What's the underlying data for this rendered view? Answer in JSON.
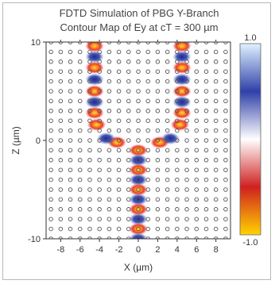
{
  "chart_data": {
    "type": "heatmap",
    "title": "FDTD Simulation of PBG Y-Branch",
    "subtitle": "Contour Map of Ey at cT = 300 µm",
    "xlabel": "X (µm)",
    "ylabel": "Z (µm)",
    "xlim": [
      -9.5,
      9.5
    ],
    "ylim": [
      -10,
      10
    ],
    "xticks": [
      -8,
      -6,
      -4,
      -2,
      0,
      2,
      4,
      6,
      8
    ],
    "yticks": [
      10,
      0,
      -10
    ],
    "colorbar": {
      "range": [
        -1.0,
        1.0
      ],
      "tick_labels": [
        "1.0",
        "-1.0"
      ],
      "colors_high_to_low": [
        "#dff2ff",
        "#3040a8",
        "#ffffff",
        "#d02020",
        "#ffd400"
      ]
    },
    "rod_lattice": {
      "pitch_um": 1.0,
      "x_range": [
        -9,
        9
      ],
      "z_range": [
        -10,
        10
      ],
      "marker": "open-circle"
    },
    "field_lobes": [
      {
        "x": 0,
        "z": -1,
        "sign": 1
      },
      {
        "x": 0,
        "z": -2,
        "sign": -1
      },
      {
        "x": 0,
        "z": -3,
        "sign": 1
      },
      {
        "x": 0,
        "z": -4,
        "sign": -1
      },
      {
        "x": 0,
        "z": -5,
        "sign": 1
      },
      {
        "x": 0,
        "z": -6,
        "sign": -1
      },
      {
        "x": 0,
        "z": -7,
        "sign": 1
      },
      {
        "x": 0,
        "z": -8,
        "sign": -1
      },
      {
        "x": 0,
        "z": -9,
        "sign": 1
      },
      {
        "x": 0,
        "z": -10,
        "sign": -1
      },
      {
        "x": -2.2,
        "z": -0.2,
        "sign": 1
      },
      {
        "x": 2.2,
        "z": -0.2,
        "sign": 1
      },
      {
        "x": -3.3,
        "z": 0.2,
        "sign": -1
      },
      {
        "x": 3.3,
        "z": 0.2,
        "sign": -1
      },
      {
        "x": -4.3,
        "z": 1.6,
        "sign": 1
      },
      {
        "x": -4.5,
        "z": 2.8,
        "sign": 1
      },
      {
        "x": -4.5,
        "z": 3.9,
        "sign": -1
      },
      {
        "x": -4.5,
        "z": 5.0,
        "sign": 1
      },
      {
        "x": -4.5,
        "z": 6.2,
        "sign": -1
      },
      {
        "x": -4.5,
        "z": 7.4,
        "sign": 1
      },
      {
        "x": -4.5,
        "z": 8.5,
        "sign": -1
      },
      {
        "x": -4.5,
        "z": 9.6,
        "sign": 1
      },
      {
        "x": 4.3,
        "z": 1.6,
        "sign": 1
      },
      {
        "x": 4.5,
        "z": 2.8,
        "sign": 1
      },
      {
        "x": 4.5,
        "z": 3.9,
        "sign": -1
      },
      {
        "x": 4.5,
        "z": 5.0,
        "sign": 1
      },
      {
        "x": 4.5,
        "z": 6.2,
        "sign": -1
      },
      {
        "x": 4.5,
        "z": 7.4,
        "sign": 1
      },
      {
        "x": 4.5,
        "z": 8.5,
        "sign": -1
      },
      {
        "x": 4.5,
        "z": 9.6,
        "sign": 1
      }
    ]
  }
}
